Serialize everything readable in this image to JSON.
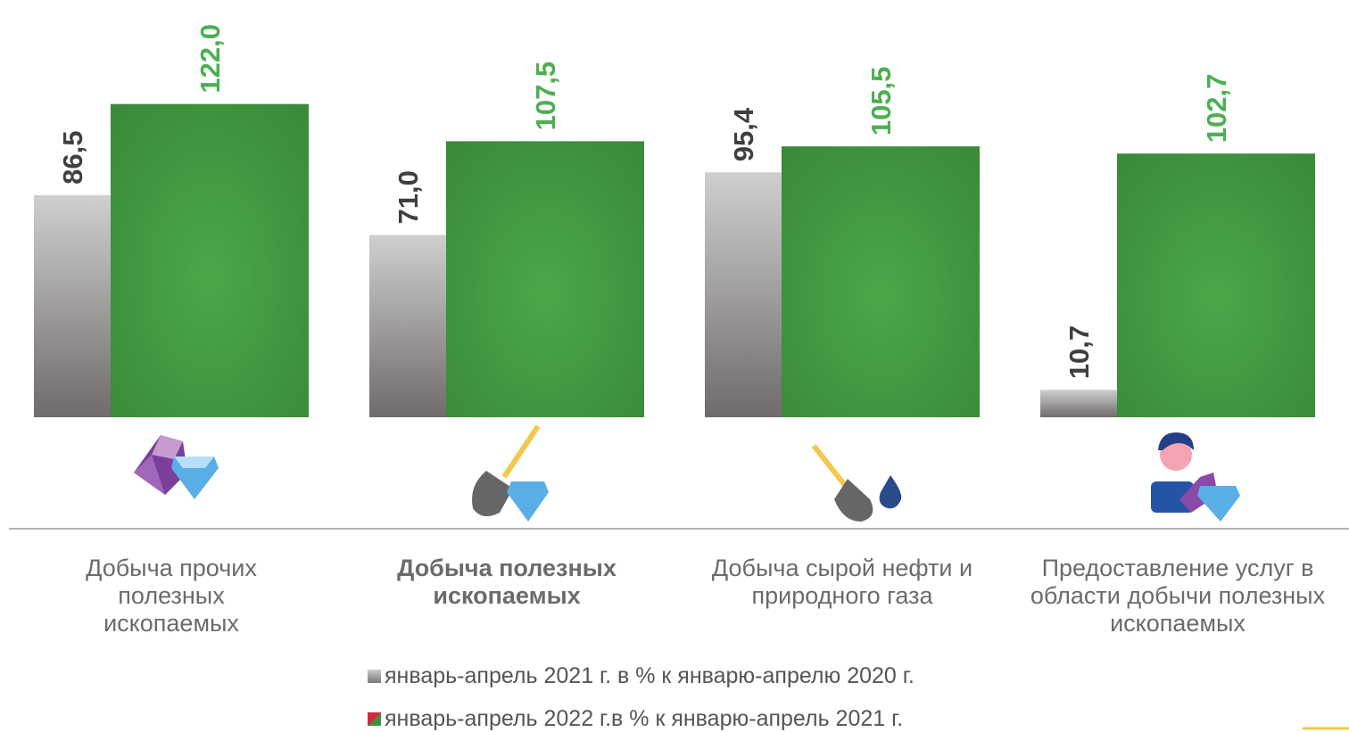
{
  "chart_data": {
    "type": "bar",
    "categories": [
      "Добыча прочих полезных ископаемых",
      "Добыча полезных ископаемых",
      "Добыча сырой нефти и природного газа",
      "Предоставление услуг в области добычи полезных ископаемых"
    ],
    "series": [
      {
        "name": "январь-апрель 2021 г. в % к январю-апрелю 2020 г.",
        "color": "#a9a7a7",
        "label_color": "#3f3f3f",
        "values": [
          86.5,
          71.0,
          95.4,
          10.7
        ],
        "value_labels": [
          "86,5",
          "71,0",
          "95,4",
          "10,7"
        ]
      },
      {
        "name": "январь-апрель 2022 г.в % к январю-апрель 2021 г.",
        "color": "#3f913f",
        "label_color": "#4caf50",
        "values": [
          122.0,
          107.5,
          105.5,
          102.7
        ],
        "value_labels": [
          "122,0",
          "107,5",
          "105,5",
          "102,7"
        ]
      }
    ],
    "ylim": [
      0,
      125
    ]
  }
}
